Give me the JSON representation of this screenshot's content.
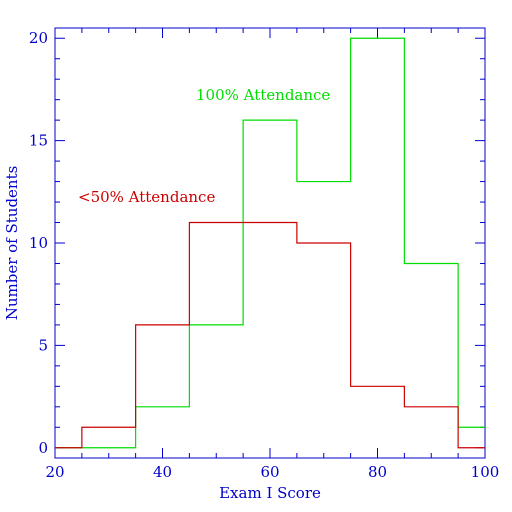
{
  "chart_data": {
    "type": "histogram",
    "xlabel": "Exam I Score",
    "ylabel": "Number of Students",
    "xlim": [
      20,
      100
    ],
    "ylim": [
      -0.5,
      20.5
    ],
    "x_ticks": [
      20,
      40,
      60,
      80,
      100
    ],
    "y_ticks": [
      0,
      5,
      10,
      15,
      20
    ],
    "grid": false,
    "axis_color": "#0000cc",
    "bin_edges": [
      20,
      25,
      35,
      45,
      55,
      65,
      75,
      85,
      95,
      100
    ],
    "series": [
      {
        "name": "100% Attendance",
        "color": "#00dd00",
        "values": [
          0,
          0,
          2,
          6,
          16,
          13,
          20,
          9,
          1
        ]
      },
      {
        "name": "<50% Attendance",
        "color": "#cc0000",
        "values": [
          0,
          1,
          6,
          11,
          11,
          10,
          3,
          2,
          0
        ]
      }
    ]
  }
}
